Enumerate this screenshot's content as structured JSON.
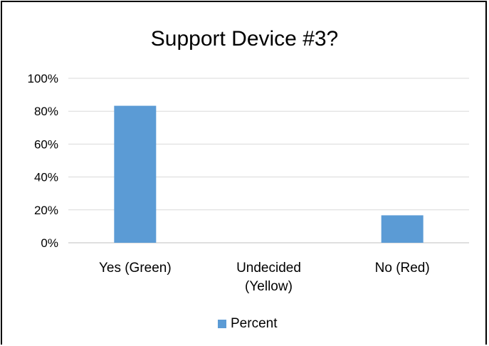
{
  "chart_data": {
    "type": "bar",
    "title": "Support Device #3?",
    "categories": [
      [
        "Yes (Green)"
      ],
      [
        "Undecided",
        "(Yellow)"
      ],
      [
        "No (Red)"
      ]
    ],
    "series": [
      {
        "name": "Percent",
        "values": [
          83.3,
          0,
          16.7
        ],
        "color": "#5b9bd5"
      }
    ],
    "yticks": [
      "0%",
      "20%",
      "40%",
      "60%",
      "80%",
      "100%"
    ],
    "ylim": [
      0,
      100
    ],
    "grid": true,
    "legend_position": "bottom"
  }
}
